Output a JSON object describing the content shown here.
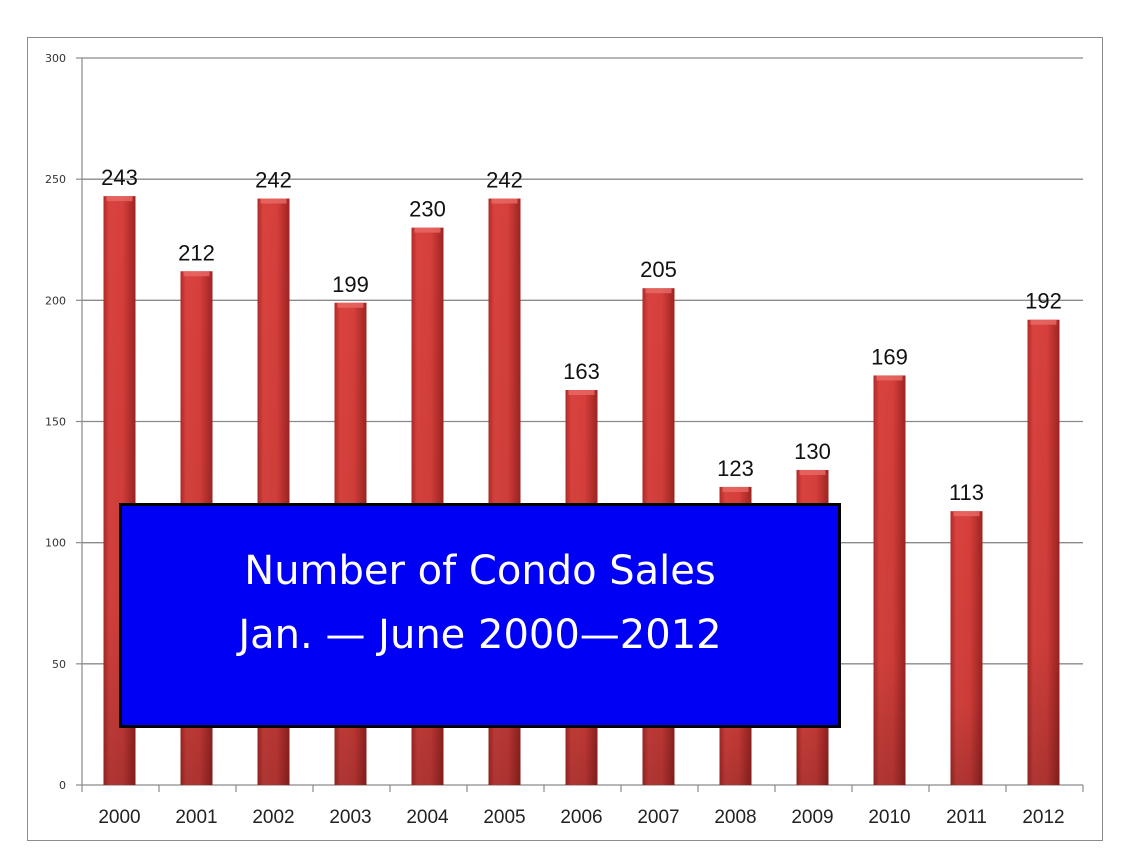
{
  "chart_data": {
    "type": "bar",
    "title": "Number of Condo Sales",
    "subtitle": "Jan. — June 2000—2012",
    "categories": [
      "2000",
      "2001",
      "2002",
      "2003",
      "2004",
      "2005",
      "2006",
      "2007",
      "2008",
      "2009",
      "2010",
      "2011",
      "2012"
    ],
    "values": [
      243,
      212,
      242,
      199,
      230,
      242,
      163,
      205,
      123,
      130,
      169,
      113,
      192
    ],
    "xlabel": "",
    "ylabel": "",
    "ylim": [
      0,
      300
    ],
    "yticks": [
      0,
      50,
      100,
      150,
      200,
      250,
      300
    ],
    "grid": true,
    "legend": null,
    "bar_color": "#d43f3a",
    "title_box_color": "#0000f5"
  },
  "title_box": {
    "line1": "Number of Condo Sales",
    "line2": "Jan. — June 2000—2012"
  }
}
